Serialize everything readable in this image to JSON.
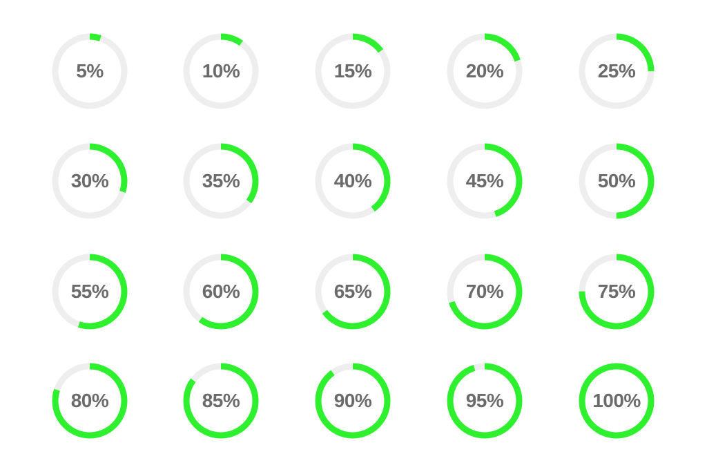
{
  "colors": {
    "progress": "#2ef02e",
    "track": "#eeeeee",
    "text": "#6b6b6b",
    "background": "#ffffff"
  },
  "indicators": [
    {
      "label": "5%",
      "value": 0.05
    },
    {
      "label": "10%",
      "value": 0.1
    },
    {
      "label": "15%",
      "value": 0.15
    },
    {
      "label": "20%",
      "value": 0.2
    },
    {
      "label": "25%",
      "value": 0.25
    },
    {
      "label": "30%",
      "value": 0.3
    },
    {
      "label": "35%",
      "value": 0.35
    },
    {
      "label": "40%",
      "value": 0.4
    },
    {
      "label": "45%",
      "value": 0.45
    },
    {
      "label": "50%",
      "value": 0.5
    },
    {
      "label": "55%",
      "value": 0.55
    },
    {
      "label": "60%",
      "value": 0.6
    },
    {
      "label": "65%",
      "value": 0.65
    },
    {
      "label": "70%",
      "value": 0.7
    },
    {
      "label": "75%",
      "value": 0.75
    },
    {
      "label": "80%",
      "value": 0.8
    },
    {
      "label": "85%",
      "value": 0.85
    },
    {
      "label": "90%",
      "value": 0.9
    },
    {
      "label": "95%",
      "value": 0.95
    },
    {
      "label": "100%",
      "value": 1.0
    }
  ]
}
